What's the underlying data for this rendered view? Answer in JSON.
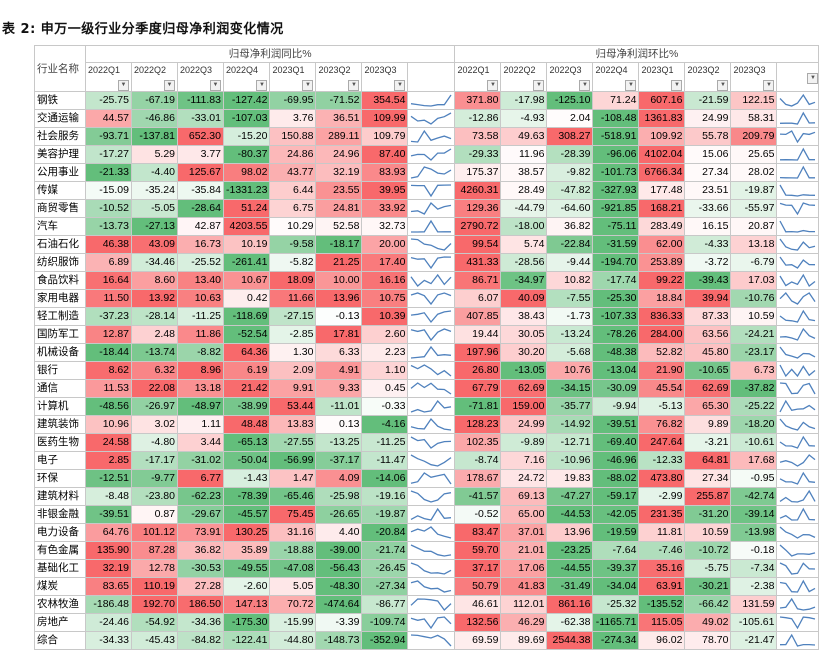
{
  "title": "表 2:  申万一级行业分季度归母净利润变化情况",
  "headers": {
    "industry": "行业名称",
    "yoy_group": "归母净利润同比%",
    "qoq_group": "归母净利润环比%",
    "quarters": [
      "2022Q1",
      "2022Q2",
      "2022Q3",
      "2022Q4",
      "2023Q1",
      "2023Q2",
      "2023Q3"
    ]
  },
  "colors": {
    "green": "#63be7b",
    "red": "#f8696b",
    "white": "#ffffff",
    "sparkline": "#4f81bd"
  },
  "rows": [
    {
      "name": "钢铁",
      "yoy": [
        "-25.75",
        "-67.19",
        "-111.83",
        "-127.42",
        "-69.95",
        "-71.52",
        "354.54"
      ],
      "qoq": [
        "371.80",
        "-17.98",
        "-125.10",
        "71.24",
        "607.16",
        "-21.59",
        "122.15"
      ]
    },
    {
      "name": "交通运输",
      "yoy": [
        "44.57",
        "-46.86",
        "-33.01",
        "-107.03",
        "3.76",
        "36.51",
        "109.99"
      ],
      "qoq": [
        "-12.86",
        "-4.93",
        "2.04",
        "-108.48",
        "1361.83",
        "24.99",
        "58.31"
      ]
    },
    {
      "name": "社会服务",
      "yoy": [
        "-93.71",
        "-137.81",
        "652.30",
        "-15.20",
        "150.88",
        "289.11",
        "109.79"
      ],
      "qoq": [
        "73.58",
        "49.63",
        "308.27",
        "-518.91",
        "109.92",
        "55.78",
        "209.79"
      ]
    },
    {
      "name": "美容护理",
      "yoy": [
        "-17.27",
        "5.29",
        "3.77",
        "-80.37",
        "24.86",
        "24.96",
        "87.40"
      ],
      "qoq": [
        "-29.33",
        "11.96",
        "-28.39",
        "-96.06",
        "4102.04",
        "15.06",
        "25.65"
      ]
    },
    {
      "name": "公用事业",
      "yoy": [
        "-21.33",
        "-4.40",
        "125.67",
        "98.02",
        "43.77",
        "32.19",
        "83.93"
      ],
      "qoq": [
        "175.37",
        "38.57",
        "-9.82",
        "-101.73",
        "6766.34",
        "27.34",
        "28.02"
      ]
    },
    {
      "name": "传媒",
      "yoy": [
        "-15.09",
        "-35.24",
        "-35.84",
        "-1331.23",
        "6.44",
        "23.55",
        "39.95"
      ],
      "qoq": [
        "4260.31",
        "28.49",
        "-47.82",
        "-327.93",
        "177.48",
        "23.51",
        "-19.87"
      ]
    },
    {
      "name": "商贸零售",
      "yoy": [
        "-10.52",
        "-5.05",
        "-28.64",
        "51.24",
        "6.75",
        "24.81",
        "33.92"
      ],
      "qoq": [
        "129.36",
        "-44.79",
        "-64.60",
        "-921.85",
        "168.21",
        "-33.66",
        "-55.97"
      ]
    },
    {
      "name": "汽车",
      "yoy": [
        "-13.73",
        "-27.13",
        "42.87",
        "4203.55",
        "10.29",
        "52.58",
        "32.73"
      ],
      "qoq": [
        "2790.72",
        "-18.00",
        "36.82",
        "-75.11",
        "283.49",
        "16.15",
        "20.87"
      ]
    },
    {
      "name": "石油石化",
      "yoy": [
        "46.38",
        "43.09",
        "16.73",
        "10.19",
        "-9.58",
        "-18.17",
        "20.00"
      ],
      "qoq": [
        "99.54",
        "5.74",
        "-22.84",
        "-31.59",
        "62.00",
        "-4.33",
        "13.18"
      ]
    },
    {
      "name": "纺织服饰",
      "yoy": [
        "6.89",
        "-34.46",
        "-25.52",
        "-261.41",
        "-5.82",
        "21.25",
        "17.40"
      ],
      "qoq": [
        "431.33",
        "-28.56",
        "-9.44",
        "-194.70",
        "253.89",
        "-3.72",
        "-6.79"
      ]
    },
    {
      "name": "食品饮料",
      "yoy": [
        "16.64",
        "8.60",
        "13.40",
        "10.67",
        "18.09",
        "10.00",
        "16.16"
      ],
      "qoq": [
        "86.71",
        "-34.97",
        "10.82",
        "-17.74",
        "99.22",
        "-39.43",
        "17.03"
      ]
    },
    {
      "name": "家用电器",
      "yoy": [
        "11.50",
        "13.92",
        "10.63",
        "0.42",
        "11.66",
        "13.96",
        "10.75"
      ],
      "qoq": [
        "6.07",
        "40.09",
        "-7.55",
        "-25.30",
        "18.84",
        "39.94",
        "-10.76"
      ]
    },
    {
      "name": "轻工制造",
      "yoy": [
        "-37.23",
        "-28.14",
        "-11.25",
        "-118.69",
        "-27.15",
        "-0.13",
        "10.39"
      ],
      "qoq": [
        "407.85",
        "38.43",
        "-1.73",
        "-107.33",
        "836.33",
        "87.33",
        "10.59"
      ]
    },
    {
      "name": "国防军工",
      "yoy": [
        "12.87",
        "2.48",
        "11.86",
        "-52.54",
        "-2.85",
        "17.81",
        "2.60"
      ],
      "qoq": [
        "19.44",
        "30.05",
        "-13.24",
        "-78.26",
        "284.00",
        "63.56",
        "-24.21"
      ]
    },
    {
      "name": "机械设备",
      "yoy": [
        "-18.44",
        "-13.74",
        "-8.82",
        "64.36",
        "1.30",
        "6.33",
        "2.23"
      ],
      "qoq": [
        "197.96",
        "30.20",
        "-5.68",
        "-48.38",
        "52.82",
        "45.80",
        "-23.17"
      ]
    },
    {
      "name": "银行",
      "yoy": [
        "8.62",
        "6.32",
        "8.96",
        "6.19",
        "2.09",
        "4.91",
        "1.10"
      ],
      "qoq": [
        "26.80",
        "-13.05",
        "10.76",
        "-13.04",
        "21.90",
        "-10.65",
        "6.73"
      ]
    },
    {
      "name": "通信",
      "yoy": [
        "11.53",
        "22.08",
        "13.18",
        "21.42",
        "9.91",
        "9.33",
        "0.45"
      ],
      "qoq": [
        "67.79",
        "62.69",
        "-34.15",
        "-30.09",
        "45.54",
        "62.69",
        "-37.82"
      ]
    },
    {
      "name": "计算机",
      "yoy": [
        "-48.56",
        "-26.97",
        "-48.97",
        "-38.99",
        "53.44",
        "-11.01",
        "-0.33"
      ],
      "qoq": [
        "-71.81",
        "159.00",
        "-35.77",
        "-9.94",
        "-5.13",
        "65.30",
        "-25.22"
      ]
    },
    {
      "name": "建筑装饰",
      "yoy": [
        "10.96",
        "3.02",
        "1.11",
        "48.48",
        "13.83",
        "0.13",
        "-4.16"
      ],
      "qoq": [
        "128.23",
        "24.99",
        "-14.92",
        "-39.51",
        "76.82",
        "9.89",
        "-18.20"
      ]
    },
    {
      "name": "医药生物",
      "yoy": [
        "24.58",
        "-4.80",
        "3.44",
        "-65.13",
        "-27.55",
        "-13.25",
        "-11.25"
      ],
      "qoq": [
        "102.35",
        "-9.89",
        "-12.71",
        "-69.40",
        "247.64",
        "-3.21",
        "-10.61"
      ]
    },
    {
      "name": "电子",
      "yoy": [
        "2.85",
        "-17.17",
        "-31.02",
        "-50.04",
        "-56.99",
        "-37.17",
        "-11.47"
      ],
      "qoq": [
        "-8.74",
        "7.16",
        "-10.96",
        "-46.96",
        "-12.33",
        "64.81",
        "17.68"
      ]
    },
    {
      "name": "环保",
      "yoy": [
        "-12.51",
        "-9.77",
        "6.77",
        "-1.43",
        "1.47",
        "4.09",
        "-14.06"
      ],
      "qoq": [
        "178.67",
        "24.72",
        "19.83",
        "-88.02",
        "473.80",
        "27.34",
        "-0.95"
      ]
    },
    {
      "name": "建筑材料",
      "yoy": [
        "-8.48",
        "-23.80",
        "-62.23",
        "-78.39",
        "-65.46",
        "-25.98",
        "-19.16"
      ],
      "qoq": [
        "-41.57",
        "69.13",
        "-47.27",
        "-59.17",
        "-2.99",
        "255.87",
        "-42.74"
      ]
    },
    {
      "name": "非银金融",
      "yoy": [
        "-39.51",
        "0.87",
        "-29.67",
        "-45.57",
        "75.45",
        "-26.65",
        "-19.87"
      ],
      "qoq": [
        "-0.52",
        "65.00",
        "-44.53",
        "-42.05",
        "231.35",
        "-31.20",
        "-39.14"
      ]
    },
    {
      "name": "电力设备",
      "yoy": [
        "64.76",
        "101.12",
        "73.91",
        "130.25",
        "31.16",
        "4.40",
        "-20.84"
      ],
      "qoq": [
        "83.47",
        "37.01",
        "13.96",
        "-19.59",
        "11.81",
        "10.59",
        "-13.98"
      ]
    },
    {
      "name": "有色金属",
      "yoy": [
        "135.90",
        "87.28",
        "36.82",
        "35.89",
        "-18.88",
        "-39.00",
        "-21.74"
      ],
      "qoq": [
        "59.70",
        "21.01",
        "-23.25",
        "-7.64",
        "-7.46",
        "-10.72",
        "-0.18"
      ]
    },
    {
      "name": "基础化工",
      "yoy": [
        "32.19",
        "12.78",
        "-30.53",
        "-49.55",
        "-47.08",
        "-56.43",
        "-26.45"
      ],
      "qoq": [
        "37.17",
        "17.06",
        "-44.55",
        "-39.37",
        "35.16",
        "-5.75",
        "-7.34"
      ]
    },
    {
      "name": "煤炭",
      "yoy": [
        "83.65",
        "110.19",
        "27.28",
        "-2.60",
        "5.05",
        "-48.30",
        "-27.34"
      ],
      "qoq": [
        "50.79",
        "41.83",
        "-31.49",
        "-34.04",
        "63.91",
        "-30.21",
        "-2.38"
      ]
    },
    {
      "name": "农林牧渔",
      "yoy": [
        "-186.48",
        "192.70",
        "186.50",
        "147.13",
        "70.72",
        "-474.64",
        "-86.77"
      ],
      "qoq": [
        "46.61",
        "112.01",
        "861.16",
        "-25.32",
        "-135.52",
        "-66.42",
        "131.59"
      ]
    },
    {
      "name": "房地产",
      "yoy": [
        "-24.46",
        "-54.92",
        "-34.36",
        "-175.30",
        "-15.99",
        "-3.39",
        "-109.74"
      ],
      "qoq": [
        "132.56",
        "46.29",
        "-62.38",
        "-1165.71",
        "115.05",
        "49.02",
        "-105.61"
      ]
    },
    {
      "name": "综合",
      "yoy": [
        "-34.33",
        "-45.43",
        "-84.82",
        "-122.41",
        "-44.80",
        "-148.73",
        "-352.94"
      ],
      "qoq": [
        "69.59",
        "89.69",
        "2544.38",
        "-274.34",
        "96.02",
        "78.70",
        "-21.47"
      ]
    }
  ]
}
